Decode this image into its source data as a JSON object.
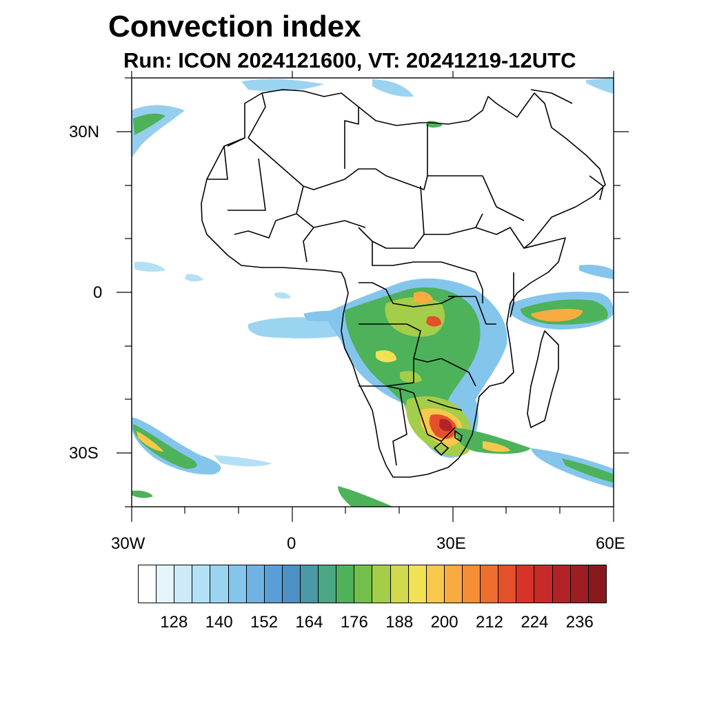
{
  "title": "Convection index",
  "subtitle": "Run: ICON 2024121600,  VT: 20241219-12UTC",
  "map": {
    "x_labels": [
      "30W",
      "0",
      "30E",
      "60E"
    ],
    "y_labels": [
      "30N",
      "0",
      "30S"
    ],
    "lon_range": [
      -30,
      60
    ],
    "lat_range": [
      -40,
      40
    ]
  },
  "colorbar": {
    "colors": [
      "#ffffff",
      "#e6f4fb",
      "#cdeaf8",
      "#b4e0f5",
      "#9bd4f1",
      "#84c5ec",
      "#6fb2e4",
      "#5a9ed8",
      "#4d91c4",
      "#4b98a6",
      "#4aa683",
      "#4db25a",
      "#73bf4b",
      "#a4cd4a",
      "#d1da4c",
      "#f1e155",
      "#f7c84b",
      "#f8ab40",
      "#f58e35",
      "#ee6e2d",
      "#e4502a",
      "#d83328",
      "#c62a29",
      "#b22328",
      "#9d1d23",
      "#881a1e"
    ],
    "labels": [
      "128",
      "140",
      "152",
      "164",
      "176",
      "188",
      "200",
      "212",
      "224",
      "236"
    ],
    "label_levels": [
      128,
      140,
      152,
      164,
      176,
      188,
      200,
      212,
      224,
      236
    ]
  }
}
